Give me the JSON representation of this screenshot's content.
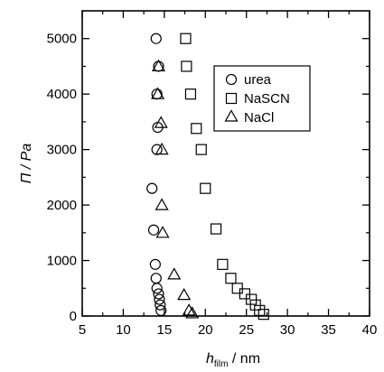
{
  "chart_data": {
    "type": "scatter",
    "xlim": [
      5,
      40
    ],
    "ylim": [
      0,
      5500
    ],
    "x_ticks": [
      5,
      10,
      15,
      20,
      25,
      30,
      35,
      40
    ],
    "y_ticks": [
      0,
      1000,
      2000,
      3000,
      4000,
      5000
    ],
    "x_tick_labels": [
      "5",
      "10",
      "15",
      "20",
      "25",
      "30",
      "35",
      "40"
    ],
    "y_tick_labels": [
      "0",
      "1000",
      "2000",
      "3000",
      "4000",
      "5000"
    ],
    "xlabel_main": "h",
    "xlabel_sub": "film",
    "xlabel_unit": " / nm",
    "ylabel": "Π / Pa",
    "grid": false,
    "legend_position": "upper-right",
    "series": [
      {
        "name": "urea",
        "marker": "circle",
        "points": [
          [
            14.0,
            5000
          ],
          [
            14.3,
            4500
          ],
          [
            14.1,
            4000
          ],
          [
            14.2,
            3400
          ],
          [
            14.1,
            3000
          ],
          [
            13.5,
            2300
          ],
          [
            13.7,
            1550
          ],
          [
            13.9,
            930
          ],
          [
            14.0,
            680
          ],
          [
            14.1,
            500
          ],
          [
            14.3,
            400
          ],
          [
            14.4,
            300
          ],
          [
            14.5,
            200
          ],
          [
            14.6,
            100
          ]
        ]
      },
      {
        "name": "NaSCN",
        "marker": "square",
        "points": [
          [
            17.6,
            5000
          ],
          [
            17.7,
            4500
          ],
          [
            18.2,
            4000
          ],
          [
            18.9,
            3380
          ],
          [
            19.5,
            3000
          ],
          [
            20.0,
            2300
          ],
          [
            21.3,
            1570
          ],
          [
            22.1,
            930
          ],
          [
            23.1,
            680
          ],
          [
            23.9,
            500
          ],
          [
            24.8,
            400
          ],
          [
            25.6,
            300
          ],
          [
            26.1,
            200
          ],
          [
            26.6,
            100
          ],
          [
            27.1,
            30
          ]
        ]
      },
      {
        "name": "NaCl",
        "marker": "triangle",
        "points": [
          [
            14.3,
            4500
          ],
          [
            14.2,
            4000
          ],
          [
            14.6,
            3480
          ],
          [
            14.7,
            3000
          ],
          [
            14.7,
            2000
          ],
          [
            14.8,
            1500
          ],
          [
            16.2,
            750
          ],
          [
            17.4,
            380
          ],
          [
            18.0,
            100
          ],
          [
            18.4,
            50
          ]
        ]
      }
    ]
  }
}
